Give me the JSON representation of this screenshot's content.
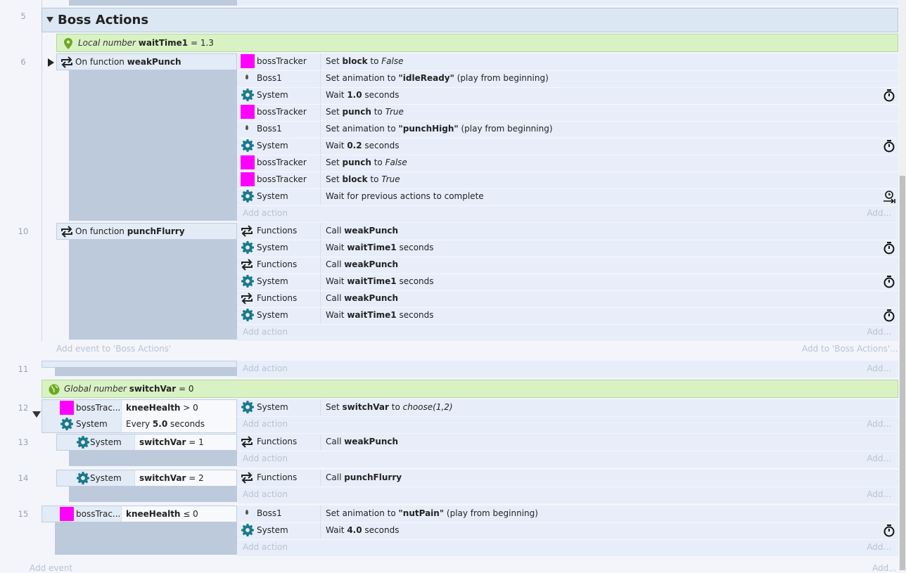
{
  "group": {
    "line": "5",
    "title": "Boss Actions",
    "add_event": "Add event to 'Boss Actions'",
    "add_to": "Add to 'Boss Actions'..."
  },
  "local_var": {
    "kind": "Local number",
    "name": "waitTime1",
    "eq": "= 1.3"
  },
  "global_var": {
    "kind": "Global number",
    "name": "switchVar",
    "eq": "= 0"
  },
  "labels": {
    "add_action": "Add action",
    "add_short": "Add...",
    "add_event": "Add event"
  },
  "events": [
    {
      "line": "6",
      "conditions": [
        {
          "icon": "function",
          "obj": "",
          "pre": "On function ",
          "bold": "weakPunch",
          "post": ""
        }
      ],
      "actions": [
        {
          "icon": "square",
          "obj": "bossTracker",
          "parts": [
            [
              "Set ",
              ""
            ],
            [
              "block",
              "b"
            ],
            [
              " to ",
              ""
            ],
            [
              "False",
              "i"
            ]
          ]
        },
        {
          "icon": "sprite",
          "obj": "Boss1",
          "parts": [
            [
              "Set animation to ",
              ""
            ],
            [
              "\"idleReady\"",
              "b"
            ],
            [
              " (play from beginning)",
              ""
            ]
          ]
        },
        {
          "icon": "gear",
          "obj": "System",
          "parts": [
            [
              "Wait ",
              ""
            ],
            [
              "1.0",
              "b"
            ],
            [
              " seconds",
              ""
            ]
          ],
          "timer": "stopwatch"
        },
        {
          "icon": "square",
          "obj": "bossTracker",
          "parts": [
            [
              "Set ",
              ""
            ],
            [
              "punch",
              "b"
            ],
            [
              " to ",
              ""
            ],
            [
              "True",
              "i"
            ]
          ]
        },
        {
          "icon": "sprite",
          "obj": "Boss1",
          "parts": [
            [
              "Set animation to ",
              ""
            ],
            [
              "\"punchHigh\"",
              "b"
            ],
            [
              " (play from beginning)",
              ""
            ]
          ]
        },
        {
          "icon": "gear",
          "obj": "System",
          "parts": [
            [
              "Wait ",
              ""
            ],
            [
              "0.2",
              "b"
            ],
            [
              " seconds",
              ""
            ]
          ],
          "timer": "stopwatch"
        },
        {
          "icon": "square",
          "obj": "bossTracker",
          "parts": [
            [
              "Set ",
              ""
            ],
            [
              "punch",
              "b"
            ],
            [
              " to ",
              ""
            ],
            [
              "False",
              "i"
            ]
          ]
        },
        {
          "icon": "square",
          "obj": "bossTracker",
          "parts": [
            [
              "Set ",
              ""
            ],
            [
              "block",
              "b"
            ],
            [
              " to ",
              ""
            ],
            [
              "True",
              "i"
            ]
          ]
        },
        {
          "icon": "gear",
          "obj": "System",
          "parts": [
            [
              "Wait for previous actions to complete",
              ""
            ]
          ],
          "timer": "wait-complete"
        }
      ]
    },
    {
      "line": "10",
      "conditions": [
        {
          "icon": "function",
          "obj": "",
          "pre": "On function ",
          "bold": "punchFlurry",
          "post": ""
        }
      ],
      "actions": [
        {
          "icon": "function",
          "obj": "Functions",
          "parts": [
            [
              "Call ",
              ""
            ],
            [
              "weakPunch",
              "b"
            ]
          ]
        },
        {
          "icon": "gear",
          "obj": "System",
          "parts": [
            [
              "Wait ",
              ""
            ],
            [
              "waitTime1",
              "b"
            ],
            [
              " seconds",
              ""
            ]
          ],
          "timer": "stopwatch"
        },
        {
          "icon": "function",
          "obj": "Functions",
          "parts": [
            [
              "Call ",
              ""
            ],
            [
              "weakPunch",
              "b"
            ]
          ]
        },
        {
          "icon": "gear",
          "obj": "System",
          "parts": [
            [
              "Wait ",
              ""
            ],
            [
              "waitTime1",
              "b"
            ],
            [
              " seconds",
              ""
            ]
          ],
          "timer": "stopwatch"
        },
        {
          "icon": "function",
          "obj": "Functions",
          "parts": [
            [
              "Call ",
              ""
            ],
            [
              "weakPunch",
              "b"
            ]
          ]
        },
        {
          "icon": "gear",
          "obj": "System",
          "parts": [
            [
              "Wait ",
              ""
            ],
            [
              "waitTime1",
              "b"
            ],
            [
              " seconds",
              ""
            ]
          ],
          "timer": "stopwatch"
        }
      ]
    },
    {
      "line": "11",
      "conditions": [],
      "actions": []
    },
    {
      "line": "12",
      "conditions": [
        {
          "icon": "square",
          "obj": "bossTrac...",
          "pre": "",
          "bold": "kneeHealth",
          "post": " > 0"
        },
        {
          "icon": "gear",
          "obj": "System",
          "pre": "Every ",
          "bold": "5.0",
          "post": " seconds"
        }
      ],
      "actions": [
        {
          "icon": "gear",
          "obj": "System",
          "parts": [
            [
              "Set ",
              ""
            ],
            [
              "switchVar",
              "b"
            ],
            [
              " to ",
              ""
            ],
            [
              "choose(1,2)",
              "i"
            ]
          ]
        }
      ]
    },
    {
      "line": "13",
      "conditions": [
        {
          "icon": "gear",
          "obj": "System",
          "pre": "",
          "bold": "switchVar",
          "post": " = 1"
        }
      ],
      "actions": [
        {
          "icon": "function",
          "obj": "Functions",
          "parts": [
            [
              "Call ",
              ""
            ],
            [
              "weakPunch",
              "b"
            ]
          ]
        }
      ]
    },
    {
      "line": "14",
      "conditions": [
        {
          "icon": "gear",
          "obj": "System",
          "pre": "",
          "bold": "switchVar",
          "post": " = 2"
        }
      ],
      "actions": [
        {
          "icon": "function",
          "obj": "Functions",
          "parts": [
            [
              "Call ",
              ""
            ],
            [
              "punchFlurry",
              "b"
            ]
          ]
        }
      ]
    },
    {
      "line": "15",
      "conditions": [
        {
          "icon": "square",
          "obj": "bossTrac...",
          "pre": "",
          "bold": "kneeHealth",
          "post": " ≤ 0"
        }
      ],
      "actions": [
        {
          "icon": "sprite",
          "obj": "Boss1",
          "parts": [
            [
              "Set animation to ",
              ""
            ],
            [
              "\"nutPain\"",
              "b"
            ],
            [
              " (play from beginning)",
              ""
            ]
          ]
        },
        {
          "icon": "gear",
          "obj": "System",
          "parts": [
            [
              "Wait ",
              ""
            ],
            [
              "4.0",
              "b"
            ],
            [
              " seconds",
              ""
            ]
          ],
          "timer": "stopwatch"
        }
      ]
    }
  ]
}
